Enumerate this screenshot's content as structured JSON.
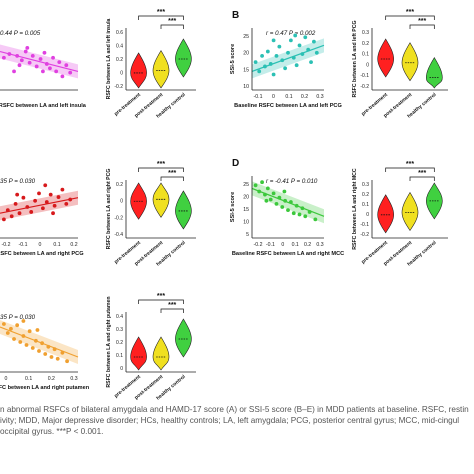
{
  "colors": {
    "magenta": "#e040e0",
    "teal": "#2bc0b4",
    "red": "#d7191c",
    "orange": "#f0a030",
    "green": "#3cc83c",
    "skyblue": "#4aa0e0",
    "violin_red": "#ff2020",
    "violin_yellow": "#f0e020",
    "violin_green": "#40d040",
    "axis": "#222222"
  },
  "caption": {
    "line1": "n abnormal RSFCs of bilateral amygdala and HAMD-17 score (A) or SSI-5 score (B–E) in MDD patients at baseline. RSFC, restin",
    "line2": "ivity; MDD, Major depressive disorder; HCs, healthy controls; LA, left amygdala; PCG, posterior central gyrus; MCC, mid-cingul",
    "line3": "occipital gyrus. ***P < 0.001."
  },
  "chart_data": [
    {
      "panel": "A",
      "type": "scatter",
      "panel_label": "",
      "stats": "0.44   P = 0.005",
      "xlabel": "e RSFC between LA and left insula",
      "ylabel": "",
      "xticks": [],
      "yticks": [],
      "color": "magenta",
      "points": [
        [
          0.05,
          0.52
        ],
        [
          0.12,
          0.58
        ],
        [
          0.18,
          0.3
        ],
        [
          0.22,
          0.55
        ],
        [
          0.28,
          0.48
        ],
        [
          0.33,
          0.62
        ],
        [
          0.38,
          0.44
        ],
        [
          0.42,
          0.55
        ],
        [
          0.47,
          0.38
        ],
        [
          0.52,
          0.5
        ],
        [
          0.57,
          0.6
        ],
        [
          0.6,
          0.42
        ],
        [
          0.64,
          0.35
        ],
        [
          0.68,
          0.52
        ],
        [
          0.72,
          0.3
        ],
        [
          0.76,
          0.45
        ],
        [
          0.8,
          0.22
        ],
        [
          0.85,
          0.4
        ],
        [
          0.9,
          0.28
        ],
        [
          0.35,
          0.68
        ],
        [
          0.55,
          0.3
        ],
        [
          0.25,
          0.4
        ]
      ],
      "fit": [
        0.62,
        0.3
      ]
    },
    {
      "panel": "A",
      "type": "violin",
      "ylabel": "RSFC between LA and left insula",
      "yticks": [
        "0.6",
        "0.4",
        "0.2",
        "0",
        "-0.2"
      ],
      "ylim": [
        -0.2,
        0.6
      ],
      "groups": [
        "pre-treatment",
        "post-treatment",
        "healthy control"
      ],
      "medians": [
        0.02,
        0.05,
        0.2
      ],
      "sig": [
        "***",
        "***"
      ]
    },
    {
      "panel": "B",
      "type": "scatter",
      "panel_label": "B",
      "stats": "r = 0.47   P = 0.002",
      "xlabel": "Baseline RSFC between LA and left PCG",
      "ylabel": "SSI-5 score",
      "xticks": [
        "-0.1",
        "0",
        "0.1",
        "0.2",
        "0.3"
      ],
      "yticks": [
        "25",
        "20",
        "15",
        "10"
      ],
      "color": "teal",
      "points": [
        [
          0.05,
          0.45
        ],
        [
          0.1,
          0.3
        ],
        [
          0.14,
          0.55
        ],
        [
          0.18,
          0.38
        ],
        [
          0.22,
          0.62
        ],
        [
          0.26,
          0.42
        ],
        [
          0.3,
          0.25
        ],
        [
          0.34,
          0.55
        ],
        [
          0.38,
          0.7
        ],
        [
          0.42,
          0.48
        ],
        [
          0.46,
          0.35
        ],
        [
          0.5,
          0.6
        ],
        [
          0.54,
          0.8
        ],
        [
          0.58,
          0.52
        ],
        [
          0.62,
          0.4
        ],
        [
          0.66,
          0.72
        ],
        [
          0.7,
          0.58
        ],
        [
          0.74,
          0.85
        ],
        [
          0.78,
          0.65
        ],
        [
          0.82,
          0.45
        ],
        [
          0.86,
          0.78
        ],
        [
          0.9,
          0.6
        ],
        [
          0.3,
          0.8
        ],
        [
          0.6,
          0.88
        ]
      ],
      "fit": [
        0.3,
        0.72
      ]
    },
    {
      "panel": "B",
      "type": "violin",
      "ylabel": "RSFC between LA and left PCG",
      "yticks": [
        "0.3",
        "0.2",
        "0.1",
        "0",
        "-0.1",
        "-0.2"
      ],
      "ylim": [
        -0.2,
        0.3
      ],
      "groups": [
        "pre-treatment",
        "post-treatment",
        "healthy control"
      ],
      "medians": [
        0.05,
        0.02,
        -0.1
      ],
      "sig": [
        "***",
        "***"
      ]
    },
    {
      "panel": "C",
      "type": "scatter",
      "panel_label": "",
      "stats": "35   P = 0.030",
      "xlabel": "RSFC between LA and right PCG",
      "ylabel": "",
      "xticks": [
        "-0.2",
        "-0.1",
        "0",
        "0.1",
        "0.2"
      ],
      "yticks": [],
      "color": "red",
      "points": [
        [
          0.05,
          0.3
        ],
        [
          0.1,
          0.45
        ],
        [
          0.15,
          0.35
        ],
        [
          0.2,
          0.55
        ],
        [
          0.25,
          0.4
        ],
        [
          0.3,
          0.65
        ],
        [
          0.35,
          0.5
        ],
        [
          0.4,
          0.42
        ],
        [
          0.45,
          0.6
        ],
        [
          0.5,
          0.72
        ],
        [
          0.55,
          0.48
        ],
        [
          0.6,
          0.58
        ],
        [
          0.65,
          0.7
        ],
        [
          0.7,
          0.52
        ],
        [
          0.75,
          0.66
        ],
        [
          0.8,
          0.78
        ],
        [
          0.85,
          0.55
        ],
        [
          0.9,
          0.62
        ],
        [
          0.22,
          0.7
        ],
        [
          0.58,
          0.85
        ],
        [
          0.68,
          0.4
        ]
      ],
      "fit": [
        0.4,
        0.65
      ]
    },
    {
      "panel": "C",
      "type": "violin",
      "ylabel": "RSFC between LA and right PCG",
      "yticks": [
        "0.2",
        "0",
        "-0.2",
        "-0.4"
      ],
      "ylim": [
        -0.4,
        0.2
      ],
      "groups": [
        "pre-treatment",
        "post-treatment",
        "healthy control"
      ],
      "medians": [
        -0.02,
        0.0,
        -0.12
      ],
      "sig": [
        "***",
        "***"
      ]
    },
    {
      "panel": "D",
      "type": "scatter",
      "panel_label": "D",
      "stats": "r = -0.41   P = 0.010",
      "xlabel": "Baseline RSFC between LA and right MCC",
      "ylabel": "SSI-5 score",
      "xticks": [
        "-0.2",
        "-0.1",
        "0",
        "0.1",
        "0.2",
        "0.3"
      ],
      "yticks": [
        "25",
        "20",
        "15",
        "10",
        "5"
      ],
      "color": "green",
      "points": [
        [
          0.05,
          0.85
        ],
        [
          0.1,
          0.75
        ],
        [
          0.14,
          0.9
        ],
        [
          0.18,
          0.7
        ],
        [
          0.22,
          0.8
        ],
        [
          0.26,
          0.62
        ],
        [
          0.3,
          0.72
        ],
        [
          0.34,
          0.55
        ],
        [
          0.38,
          0.65
        ],
        [
          0.42,
          0.5
        ],
        [
          0.46,
          0.6
        ],
        [
          0.5,
          0.45
        ],
        [
          0.54,
          0.58
        ],
        [
          0.58,
          0.4
        ],
        [
          0.62,
          0.52
        ],
        [
          0.66,
          0.38
        ],
        [
          0.7,
          0.48
        ],
        [
          0.74,
          0.35
        ],
        [
          0.8,
          0.42
        ],
        [
          0.88,
          0.3
        ],
        [
          0.2,
          0.6
        ],
        [
          0.45,
          0.75
        ]
      ],
      "fit": [
        0.8,
        0.35
      ]
    },
    {
      "panel": "D",
      "type": "violin",
      "ylabel": "RSFC between LA and right MCC",
      "yticks": [
        "0.3",
        "0.2",
        "0.1",
        "0",
        "-0.1",
        "-0.2"
      ],
      "ylim": [
        -0.2,
        0.3
      ],
      "groups": [
        "pre-treatment",
        "post-treatment",
        "healthy control"
      ],
      "medians": [
        0.0,
        0.02,
        0.12
      ],
      "sig": [
        "***",
        "***"
      ]
    },
    {
      "panel": "E",
      "type": "scatter",
      "panel_label": "",
      "stats": "35   P = 0.030",
      "xlabel": "RSFC between LA and right putamen",
      "ylabel": "",
      "xticks": [
        "0",
        "0.1",
        "0.2",
        "0.3"
      ],
      "yticks": [],
      "color": "orange",
      "points": [
        [
          0.05,
          0.8
        ],
        [
          0.1,
          0.65
        ],
        [
          0.14,
          0.72
        ],
        [
          0.18,
          0.55
        ],
        [
          0.22,
          0.78
        ],
        [
          0.26,
          0.5
        ],
        [
          0.3,
          0.6
        ],
        [
          0.34,
          0.45
        ],
        [
          0.38,
          0.68
        ],
        [
          0.42,
          0.4
        ],
        [
          0.46,
          0.52
        ],
        [
          0.5,
          0.35
        ],
        [
          0.54,
          0.48
        ],
        [
          0.58,
          0.3
        ],
        [
          0.62,
          0.42
        ],
        [
          0.66,
          0.25
        ],
        [
          0.7,
          0.38
        ],
        [
          0.74,
          0.22
        ],
        [
          0.8,
          0.32
        ],
        [
          0.86,
          0.18
        ],
        [
          0.3,
          0.85
        ],
        [
          0.48,
          0.7
        ]
      ],
      "fit": [
        0.75,
        0.25
      ]
    },
    {
      "panel": "E",
      "type": "violin",
      "ylabel": "RSFC between LA and right putamen",
      "yticks": [
        "0.4",
        "0.3",
        "0.2",
        "0.1",
        "0"
      ],
      "ylim": [
        0,
        0.4
      ],
      "groups": [
        "pre-treatment",
        "post-treatment",
        "healthy control"
      ],
      "medians": [
        0.1,
        0.1,
        0.22
      ],
      "sig": [
        "***",
        "***"
      ]
    }
  ]
}
